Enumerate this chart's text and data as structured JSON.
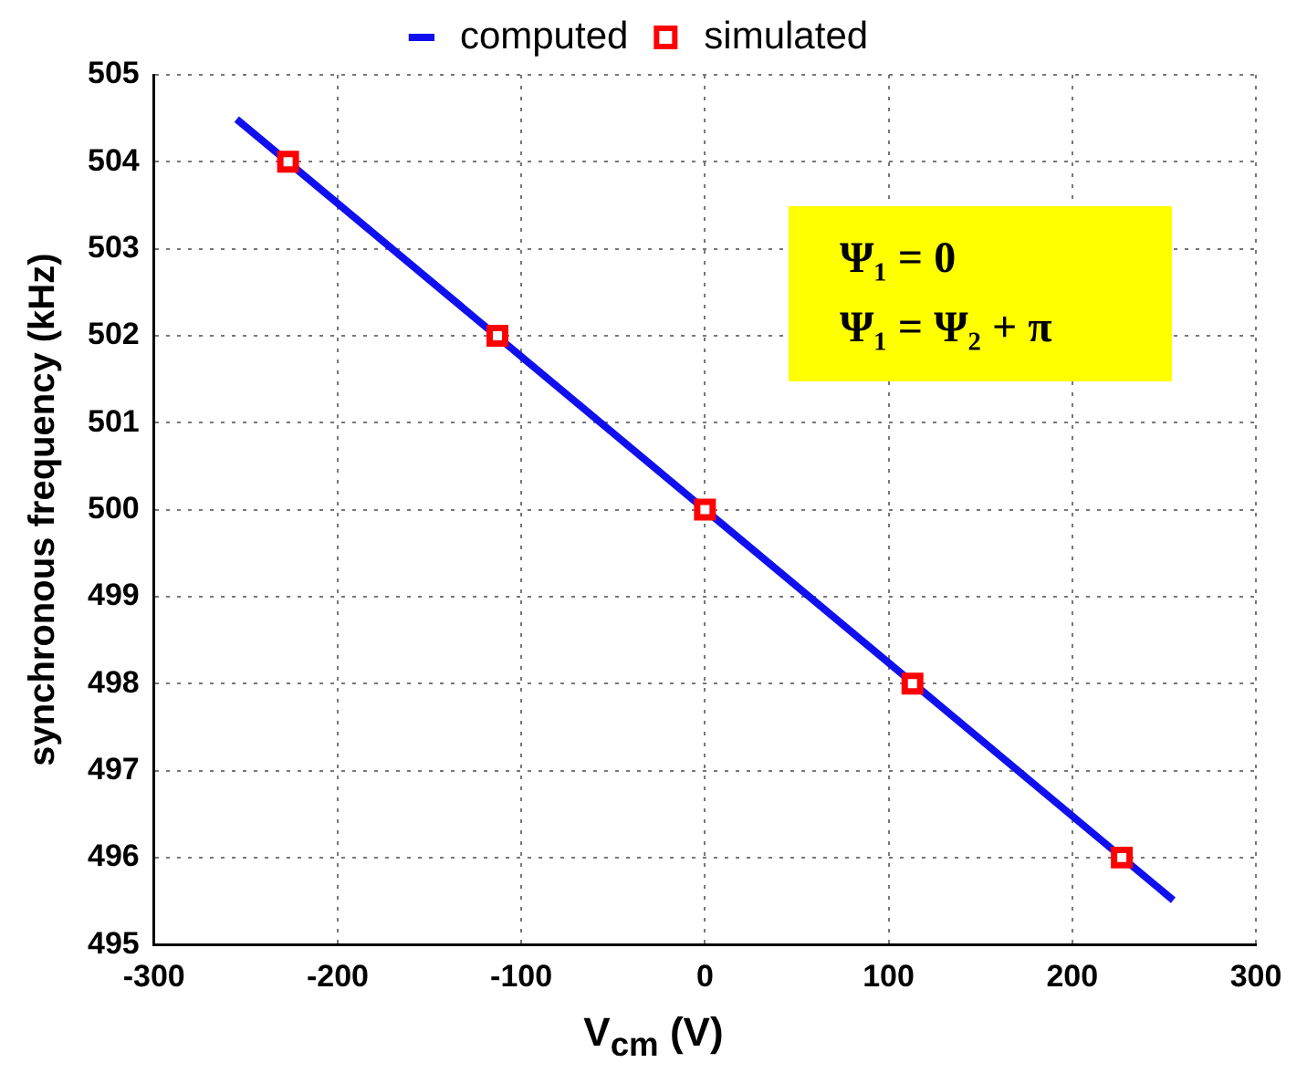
{
  "chart_data": {
    "type": "line",
    "xlabel": "V$_{cm}$ (V)",
    "ylabel": "synchronous frequency (kHz)",
    "series": [
      {
        "name": "computed",
        "color": "#1010ee",
        "x": [
          -255,
          255
        ],
        "values": [
          504.49,
          495.51
        ],
        "marker": "none"
      },
      {
        "name": "simulated",
        "type": "scatter",
        "color": "#ff0000",
        "x": [
          -227,
          -113,
          0,
          113,
          227
        ],
        "values": [
          504,
          502,
          500,
          498,
          496
        ],
        "marker": "square"
      }
    ],
    "xlim": [
      -300,
      300
    ],
    "xticks": [
      -300,
      -200,
      -100,
      0,
      100,
      200,
      300
    ],
    "ylim": [
      495,
      505
    ],
    "yticks": [
      495,
      496,
      497,
      498,
      499,
      500,
      501,
      502,
      503,
      504,
      505
    ],
    "grid": true,
    "legend": "top",
    "annotations": [
      "Ψ₁ = 0\nΨ₁ = Ψ₂ + π"
    ]
  }
}
